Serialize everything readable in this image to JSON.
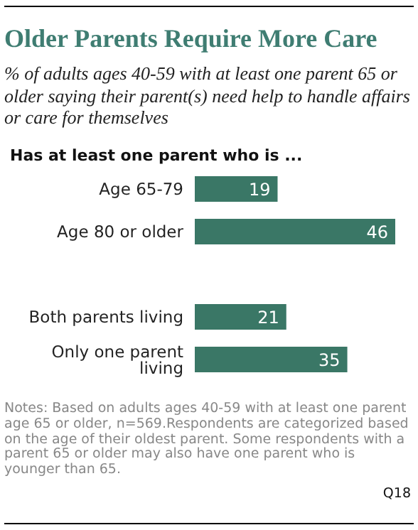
{
  "chart_data": {
    "type": "bar",
    "orientation": "horizontal",
    "title": "Older Parents Require More Care",
    "subtitle": "% of adults ages 40-59 with at least one parent 65 or older saying their parent(s) need help to handle affairs or care for themselves",
    "categories": [
      "Age 65-79",
      "Age 80 or older",
      null,
      "Both parents living",
      "Only one parent living"
    ],
    "values": [
      19,
      46,
      null,
      21,
      35
    ],
    "color": "#3a7766",
    "data_labels": true,
    "annotations": [
      "Has at least one parent who is ...",
      "Notes: Based on adults ages 40-59 with at least one parent age 65 or older, n=569.Respondents are categorized based on the age of their oldest parent. Some respondents with a parent 65 or older may also have one parent who is younger than 65.",
      "Q18"
    ]
  }
}
